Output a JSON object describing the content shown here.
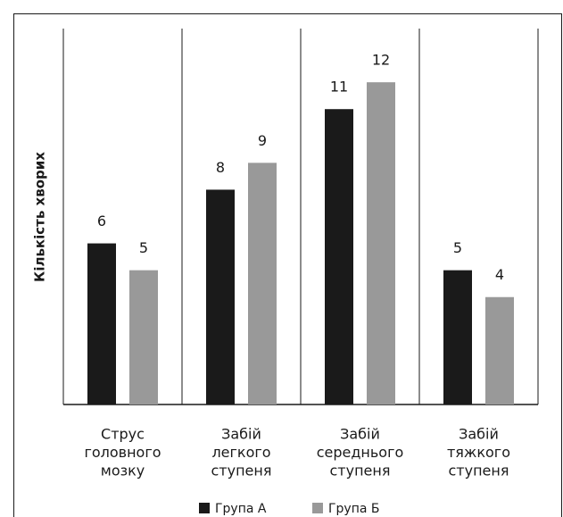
{
  "chart_data": {
    "type": "bar",
    "y_label": "Кількість хворих",
    "categories": [
      [
        "Струс",
        "головного",
        "мозку"
      ],
      [
        "Забій",
        "легкого",
        "ступеня"
      ],
      [
        "Забій",
        "середнього",
        "ступеня"
      ],
      [
        "Забій",
        "тяжкого",
        "ступеня"
      ]
    ],
    "series": [
      {
        "name": "Група А",
        "color": "#1a1a1a",
        "values": [
          6,
          8,
          11,
          5
        ]
      },
      {
        "name": "Група Б",
        "color": "#999999",
        "values": [
          5,
          9,
          12,
          4
        ]
      }
    ],
    "ylim": [
      0,
      14
    ]
  }
}
